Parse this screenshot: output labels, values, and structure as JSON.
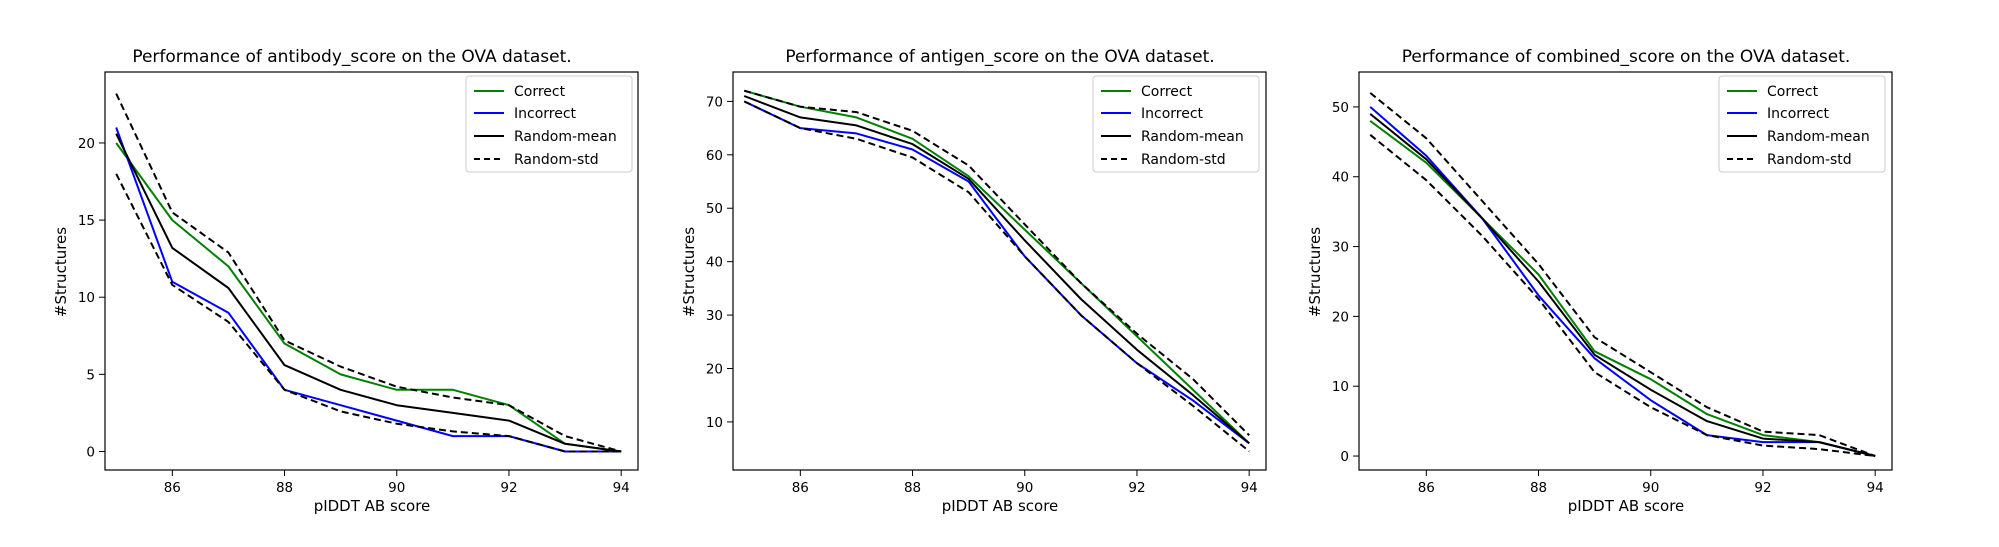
{
  "colors": {
    "correct": "#008000",
    "incorrect": "#0000ff",
    "random": "#000000",
    "frame": "#000000",
    "legend_border": "#cccccc"
  },
  "chart_data": [
    {
      "type": "line",
      "title": "Performance of antibody_score on the OVA dataset.",
      "xlabel": "pIDDT AB score",
      "ylabel": "#Structures",
      "x": [
        85,
        86,
        87,
        88,
        89,
        90,
        91,
        92,
        93,
        94
      ],
      "xlim": [
        84.8,
        94.3
      ],
      "ylim": [
        -1.2,
        24.6
      ],
      "xticks": [
        86,
        88,
        90,
        92,
        94
      ],
      "yticks": [
        0,
        5,
        10,
        15,
        20
      ],
      "legend": [
        "Correct",
        "Incorrect",
        "Random-mean",
        "Random-std"
      ],
      "legend_position": "upper right",
      "series": [
        {
          "name": "Correct",
          "style": "solid",
          "color": "correct",
          "values": [
            20.0,
            15.0,
            12.0,
            7.0,
            5.0,
            4.0,
            4.0,
            3.0,
            0.5,
            0.0
          ]
        },
        {
          "name": "Incorrect",
          "style": "solid",
          "color": "incorrect",
          "values": [
            21.0,
            11.0,
            9.0,
            4.0,
            3.0,
            2.0,
            1.0,
            1.0,
            0.0,
            0.0
          ]
        },
        {
          "name": "Random-mean",
          "style": "solid",
          "color": "random",
          "values": [
            20.6,
            13.2,
            10.6,
            5.6,
            4.0,
            3.0,
            2.5,
            2.0,
            0.5,
            0.0
          ]
        },
        {
          "name": "Random-std",
          "style": "dashed",
          "color": "random",
          "values": [
            23.2,
            15.5,
            12.9,
            7.2,
            5.5,
            4.2,
            3.5,
            3.0,
            1.0,
            0.0
          ]
        },
        {
          "name": "",
          "style": "dashed",
          "color": "random",
          "values": [
            18.0,
            10.8,
            8.4,
            4.0,
            2.6,
            1.8,
            1.3,
            1.0,
            0.0,
            0.0
          ]
        }
      ]
    },
    {
      "type": "line",
      "title": "Performance of antigen_score on the OVA dataset.",
      "xlabel": "pIDDT AB score",
      "ylabel": "#Structures",
      "x": [
        85,
        86,
        87,
        88,
        89,
        90,
        91,
        92,
        93,
        94
      ],
      "xlim": [
        84.8,
        94.3
      ],
      "ylim": [
        1.0,
        75.5
      ],
      "xticks": [
        86,
        88,
        90,
        92,
        94
      ],
      "yticks": [
        10,
        20,
        30,
        40,
        50,
        60,
        70
      ],
      "legend": [
        "Correct",
        "Incorrect",
        "Random-mean",
        "Random-std"
      ],
      "legend_position": "upper right",
      "series": [
        {
          "name": "Correct",
          "style": "solid",
          "color": "correct",
          "values": [
            72.0,
            69.0,
            67.0,
            63.0,
            56.0,
            46.0,
            36.0,
            26.0,
            16.0,
            6.0
          ]
        },
        {
          "name": "Incorrect",
          "style": "solid",
          "color": "incorrect",
          "values": [
            70.0,
            65.0,
            64.0,
            61.0,
            55.0,
            41.0,
            30.0,
            21.0,
            14.0,
            6.0
          ]
        },
        {
          "name": "Random-mean",
          "style": "solid",
          "color": "random",
          "values": [
            71.0,
            67.0,
            65.5,
            62.0,
            55.5,
            44.0,
            33.0,
            23.5,
            15.0,
            6.0
          ]
        },
        {
          "name": "Random-std",
          "style": "dashed",
          "color": "random",
          "values": [
            72.0,
            69.0,
            68.0,
            64.5,
            58.0,
            47.0,
            36.0,
            26.5,
            18.0,
            7.5
          ]
        },
        {
          "name": "",
          "style": "dashed",
          "color": "random",
          "values": [
            70.0,
            65.0,
            63.0,
            59.5,
            53.0,
            41.0,
            30.0,
            21.0,
            13.0,
            4.5
          ]
        }
      ]
    },
    {
      "type": "line",
      "title": "Performance of combined_score on the OVA dataset.",
      "xlabel": "pIDDT AB score",
      "ylabel": "#Structures",
      "x": [
        85,
        86,
        87,
        88,
        89,
        90,
        91,
        92,
        93,
        94
      ],
      "xlim": [
        84.8,
        94.3
      ],
      "ylim": [
        -2.0,
        55.0
      ],
      "xticks": [
        86,
        88,
        90,
        92,
        94
      ],
      "yticks": [
        0,
        10,
        20,
        30,
        40,
        50
      ],
      "legend": [
        "Correct",
        "Incorrect",
        "Random-mean",
        "Random-std"
      ],
      "legend_position": "upper right",
      "series": [
        {
          "name": "Correct",
          "style": "solid",
          "color": "correct",
          "values": [
            48.0,
            42.0,
            34.0,
            26.0,
            15.0,
            11.0,
            6.0,
            3.0,
            2.0,
            0.0
          ]
        },
        {
          "name": "Incorrect",
          "style": "solid",
          "color": "incorrect",
          "values": [
            50.0,
            43.0,
            34.0,
            23.0,
            14.0,
            8.0,
            3.0,
            2.0,
            2.0,
            0.0
          ]
        },
        {
          "name": "Random-mean",
          "style": "solid",
          "color": "random",
          "values": [
            49.0,
            42.5,
            34.0,
            25.0,
            14.5,
            9.5,
            5.0,
            2.5,
            2.0,
            0.0
          ]
        },
        {
          "name": "Random-std",
          "style": "dashed",
          "color": "random",
          "values": [
            52.0,
            45.5,
            36.5,
            27.5,
            17.0,
            12.0,
            7.0,
            3.5,
            3.0,
            0.0
          ]
        },
        {
          "name": "",
          "style": "dashed",
          "color": "random",
          "values": [
            46.0,
            39.5,
            31.5,
            22.5,
            12.0,
            7.0,
            3.0,
            1.5,
            1.0,
            0.0
          ]
        }
      ]
    }
  ]
}
